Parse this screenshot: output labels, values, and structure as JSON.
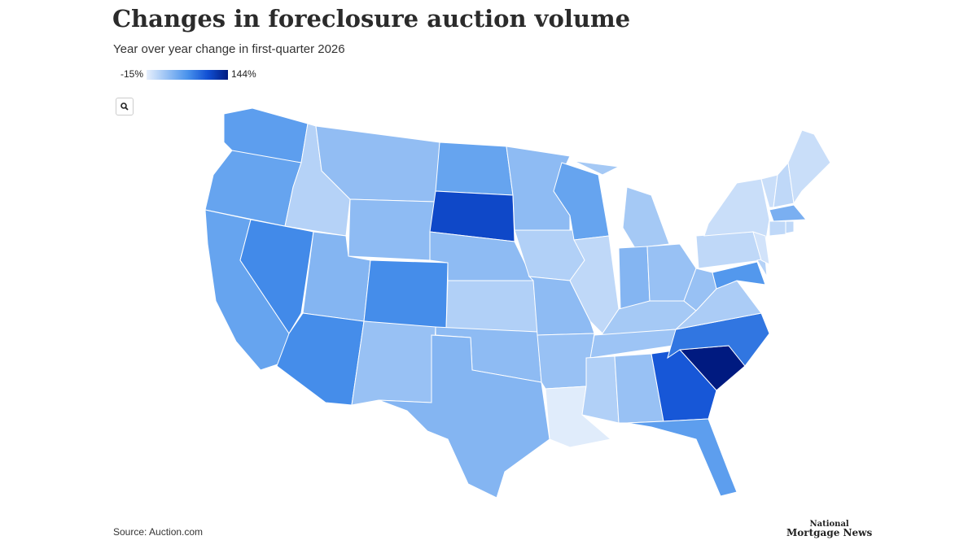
{
  "title": "Changes in foreclosure auction volume",
  "subtitle": "Year over year change in first-quarter 2026",
  "legend": {
    "min": {
      "value": -15,
      "label": "-15%"
    },
    "max": {
      "value": 144,
      "label": "144%"
    }
  },
  "regions": [
    55,
    50,
    50,
    70,
    10,
    28,
    30,
    35,
    68,
    68,
    25,
    50,
    110,
    30,
    12,
    30,
    35,
    30,
    12,
    30,
    25,
    -12,
    50,
    5,
    18,
    35,
    25,
    18,
    22,
    12,
    25,
    100,
    55,
    144,
    82,
    15,
    25,
    5,
    0,
    60,
    10,
    -5,
    0,
    5,
    0,
    40,
    5,
    5
  ],
  "source": "Source: Auction.com",
  "brand": [
    "National",
    "Mortgage News"
  ]
}
